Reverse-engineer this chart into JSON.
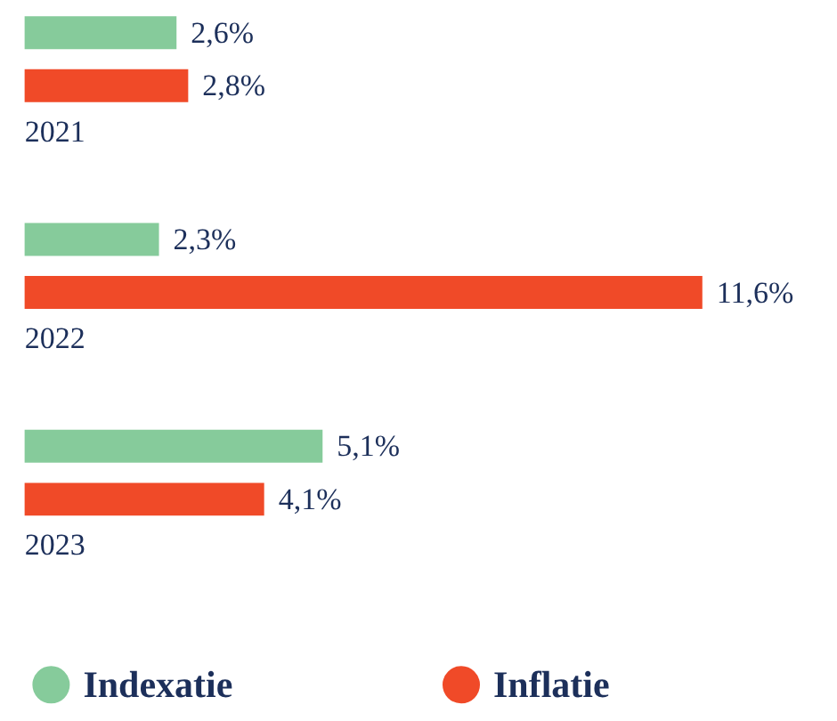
{
  "chart_data": {
    "type": "bar",
    "orientation": "horizontal",
    "categories": [
      "2021",
      "2022",
      "2023"
    ],
    "series": [
      {
        "name": "Indexatie",
        "color": "#86cb9b",
        "values": [
          2.6,
          2.3,
          5.1
        ],
        "value_labels": [
          "2,6%",
          "2,3%",
          "5,1%"
        ]
      },
      {
        "name": "Inflatie",
        "color": "#f04a28",
        "values": [
          2.8,
          11.6,
          4.1
        ],
        "value_labels": [
          "2,8%",
          "11,6%",
          "4,1%"
        ]
      }
    ],
    "legend": "bottom",
    "grid": false,
    "tick_labels": false
  }
}
